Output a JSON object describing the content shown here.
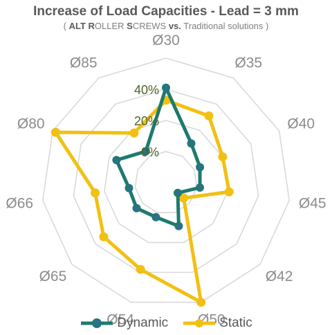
{
  "header": {
    "title": "Increase of Load Capacities - Lead = 3 mm",
    "subtitle_open": "( ",
    "subtitle_b1": "ALT R",
    "subtitle_t1": "OLLER ",
    "subtitle_b2": "S",
    "subtitle_t2": "CREWS ",
    "subtitle_b3": "vs.",
    "subtitle_t3": " Traditional solutions )"
  },
  "colors": {
    "dynamic": "#1f7a6d",
    "dynamic_marker": "#2e6f8e",
    "static": "#f2c013",
    "grid": "#d9d9d9"
  },
  "chart_data": {
    "type": "radar",
    "title": "Increase of Load Capacities - Lead = 3 mm",
    "categories": [
      "Ø30",
      "Ø35",
      "Ø40",
      "Ø45",
      "Ø42",
      "Ø50",
      "Ø54",
      "Ø65",
      "Ø66",
      "Ø80",
      "Ø85"
    ],
    "tick_labels": [
      "0%",
      "20%",
      "40%"
    ],
    "range": [
      -20,
      60
    ],
    "rings": [
      -20,
      0,
      20,
      40,
      60
    ],
    "grid": true,
    "legend_position": "bottom",
    "series": [
      {
        "name": "Dynamic",
        "values": [
          41,
          10,
          4,
          2,
          -10,
          9,
          3,
          5,
          4,
          15,
          4
        ]
      },
      {
        "name": "Static",
        "values": [
          33,
          31,
          20,
          21,
          -5,
          60,
          38,
          33,
          26,
          58,
          18
        ]
      }
    ]
  }
}
